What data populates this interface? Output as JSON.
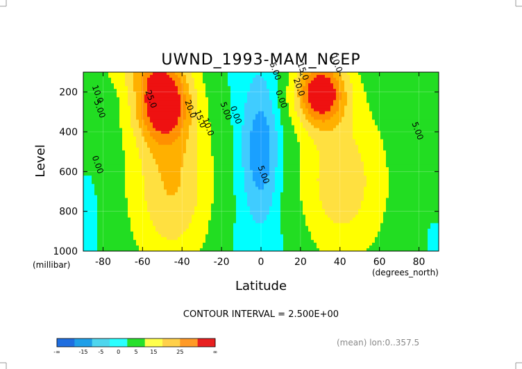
{
  "chart_data": {
    "type": "contour",
    "title": "UWND_1993-MAM_NCEP",
    "xlabel": "Latitude",
    "ylabel": "Level",
    "x_units": "(degrees_north)",
    "y_units": "(millibar)",
    "xlim": [
      -90,
      90
    ],
    "ylim": [
      1000,
      100
    ],
    "x_ticks": [
      "-80",
      "-60",
      "-40",
      "-20",
      "0",
      "20",
      "40",
      "60",
      "80"
    ],
    "x_tick_values": [
      -80,
      -60,
      -40,
      -20,
      0,
      20,
      40,
      60,
      80
    ],
    "y_ticks": [
      "200",
      "400",
      "600",
      "800",
      "1000"
    ],
    "y_tick_values": [
      200,
      400,
      600,
      800,
      1000
    ],
    "contour_interval_text": "CONTOUR INTERVAL = 2.500E+00",
    "footnote": "(mean) lon:0..357.5",
    "contour_labels": [
      {
        "text": "25.0",
        "lat": -57,
        "lev": 240
      },
      {
        "text": "20.0",
        "lat": -37,
        "lev": 290
      },
      {
        "text": "15.0",
        "lat": -32,
        "lev": 340
      },
      {
        "text": "10.0",
        "lat": -28,
        "lev": 380
      },
      {
        "text": "10.0",
        "lat": -84,
        "lev": 215
      },
      {
        "text": "5.00",
        "lat": -83,
        "lev": 290
      },
      {
        "text": "0.00",
        "lat": -84,
        "lev": 570
      },
      {
        "text": "5.00",
        "lat": -19,
        "lev": 300
      },
      {
        "text": "0.00",
        "lat": -14,
        "lev": 320
      },
      {
        "text": "5.00",
        "lat": 6,
        "lev": 100
      },
      {
        "text": "0.00",
        "lat": 9,
        "lev": 240
      },
      {
        "text": "5.00",
        "lat": 0,
        "lev": 620
      },
      {
        "text": "15.0",
        "lat": 20,
        "lev": 100
      },
      {
        "text": "10.0",
        "lat": 37,
        "lev": 60
      },
      {
        "text": "20.0",
        "lat": 18,
        "lev": 180
      },
      {
        "text": "5.00",
        "lat": 78,
        "lev": 400
      }
    ],
    "colorbar": {
      "labels": [
        "-∞",
        "-15",
        "-5",
        "0",
        "5",
        "15",
        "25",
        "∞"
      ],
      "colors": [
        "#1f6ee0",
        "#1f9fe8",
        "#4fd6ee",
        "#2bffff",
        "#27e02c",
        "#ffff4c",
        "#ffd04a",
        "#ff9a27",
        "#e82020"
      ]
    },
    "fill_colors": {
      "neg10": "#1aa0ff",
      "neg5": "#40ccff",
      "neg0": "#00ffff",
      "pos0": "#22dd22",
      "pos5": "#ffff00",
      "pos10": "#ffe040",
      "pos15": "#ffb000",
      "pos20": "#ff9000",
      "pos25": "#ee1111"
    }
  }
}
